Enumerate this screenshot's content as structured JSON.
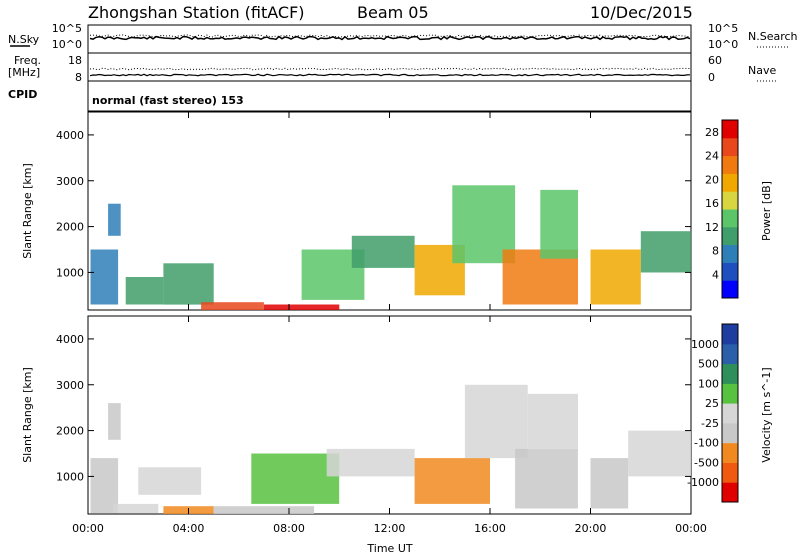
{
  "header": {
    "station": "Zhongshan Station (fitACF)",
    "beam": "Beam 05",
    "date": "10/Dec/2015"
  },
  "top_panel": {
    "left_label_1": "N.Sky",
    "left_label_2a": "Freq.",
    "left_label_2b": "[MHz]",
    "left_label_3": "CPID",
    "right_label_1": "N.Search",
    "right_label_2": "Nave",
    "nsky_ticks": [
      "10^5",
      "10^0"
    ],
    "nsearch_ticks": [
      "10^5",
      "10^0"
    ],
    "freq_ticks": [
      "18",
      "8"
    ],
    "nave_ticks": [
      "60",
      "0"
    ],
    "cpid_text": "normal (fast stereo)  153"
  },
  "colors": {
    "power_scale": [
      "#0000ff",
      "#1f4fbf",
      "#2e7fb8",
      "#3f9e6a",
      "#5cc56a",
      "#d8d640",
      "#f0a800",
      "#f07a10",
      "#e8481c",
      "#e00000"
    ],
    "velocity_scale": [
      "#e00000",
      "#ef5a10",
      "#f08a20",
      "#c8c8c8",
      "#d6d6d6",
      "#57c240",
      "#2f8f5a",
      "#2b5fa9",
      "#1d3d9f"
    ]
  },
  "chart_data": [
    {
      "type": "heatmap",
      "title": "",
      "xlabel": "",
      "ylabel": "Slant Range [km]",
      "x_ticks": [
        "00:00",
        "04:00",
        "08:00",
        "12:00",
        "16:00",
        "20:00",
        "00:00"
      ],
      "y_ticks": [
        "1000",
        "2000",
        "3000",
        "4000"
      ],
      "ylim": [
        180,
        4500
      ],
      "colorbar_label": "Power [dB]",
      "colorbar_ticks": [
        "4",
        "8",
        "12",
        "16",
        "20",
        "24",
        "28"
      ],
      "colorbar_range": [
        0,
        30
      ],
      "grid": false,
      "regions": [
        {
          "x": [
            0.1,
            1.2
          ],
          "y": [
            300,
            1500
          ],
          "value": 8
        },
        {
          "x": [
            0.8,
            1.3
          ],
          "y": [
            1800,
            2500
          ],
          "value": 7
        },
        {
          "x": [
            1.5,
            3.0
          ],
          "y": [
            300,
            900
          ],
          "value": 10
        },
        {
          "x": [
            3.0,
            5.0
          ],
          "y": [
            300,
            1200
          ],
          "value": 9
        },
        {
          "x": [
            4.5,
            7.0
          ],
          "y": [
            180,
            350
          ],
          "value": 26
        },
        {
          "x": [
            7.0,
            10.0
          ],
          "y": [
            180,
            300
          ],
          "value": 27
        },
        {
          "x": [
            8.5,
            11.0
          ],
          "y": [
            400,
            1500
          ],
          "value": 12
        },
        {
          "x": [
            10.5,
            13.0
          ],
          "y": [
            1100,
            1800
          ],
          "value": 9
        },
        {
          "x": [
            13.0,
            15.0
          ],
          "y": [
            500,
            1600
          ],
          "value": 18
        },
        {
          "x": [
            14.5,
            17.0
          ],
          "y": [
            1200,
            2900
          ],
          "value": 14
        },
        {
          "x": [
            16.5,
            19.5
          ],
          "y": [
            300,
            1500
          ],
          "value": 22
        },
        {
          "x": [
            18.0,
            19.5
          ],
          "y": [
            1300,
            2800
          ],
          "value": 13
        },
        {
          "x": [
            20.0,
            22.0
          ],
          "y": [
            300,
            1500
          ],
          "value": 19
        },
        {
          "x": [
            22.0,
            24.0
          ],
          "y": [
            1000,
            1900
          ],
          "value": 9
        }
      ]
    },
    {
      "type": "heatmap",
      "title": "",
      "xlabel": "Time UT",
      "ylabel": "Slant Range [km]",
      "x_ticks": [
        "00:00",
        "04:00",
        "08:00",
        "12:00",
        "16:00",
        "20:00",
        "00:00"
      ],
      "y_ticks": [
        "1000",
        "2000",
        "3000",
        "4000"
      ],
      "ylim": [
        180,
        4500
      ],
      "colorbar_label": "Velocity [m s^-1]",
      "colorbar_ticks": [
        "1000",
        "500",
        "100",
        "25",
        "-25",
        "-100",
        "-500",
        "-1000"
      ],
      "colorbar_range": [
        -1200,
        1200
      ],
      "grid": false,
      "regions": [
        {
          "x": [
            0.1,
            1.2
          ],
          "y": [
            200,
            1400
          ],
          "value": -400
        },
        {
          "x": [
            0.8,
            1.3
          ],
          "y": [
            1800,
            2600
          ],
          "value": -200
        },
        {
          "x": [
            1.0,
            2.8
          ],
          "y": [
            200,
            400
          ],
          "value": 80
        },
        {
          "x": [
            2.0,
            4.5
          ],
          "y": [
            600,
            1200
          ],
          "value": 10
        },
        {
          "x": [
            3.0,
            5.0
          ],
          "y": [
            180,
            350
          ],
          "value": -500
        },
        {
          "x": [
            5.0,
            9.0
          ],
          "y": [
            180,
            350
          ],
          "value": -300
        },
        {
          "x": [
            6.5,
            10.0
          ],
          "y": [
            400,
            1500
          ],
          "value": 300
        },
        {
          "x": [
            9.5,
            13.0
          ],
          "y": [
            1000,
            1600
          ],
          "value": 10
        },
        {
          "x": [
            13.0,
            16.0
          ],
          "y": [
            400,
            1400
          ],
          "value": -500
        },
        {
          "x": [
            15.0,
            17.5
          ],
          "y": [
            1400,
            3000
          ],
          "value": 10
        },
        {
          "x": [
            17.0,
            19.5
          ],
          "y": [
            300,
            1600
          ],
          "value": -400
        },
        {
          "x": [
            17.5,
            19.5
          ],
          "y": [
            1600,
            2800
          ],
          "value": 10
        },
        {
          "x": [
            20.0,
            21.5
          ],
          "y": [
            300,
            1400
          ],
          "value": -200
        },
        {
          "x": [
            21.5,
            24.0
          ],
          "y": [
            1000,
            2000
          ],
          "value": 10
        }
      ]
    }
  ]
}
